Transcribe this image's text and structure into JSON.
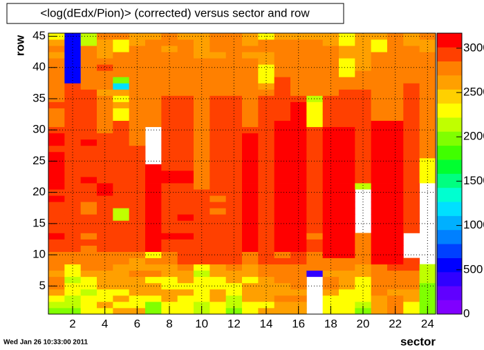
{
  "chart_data": {
    "type": "heatmap",
    "title": "<log(dEdx/Pion)> (corrected) versus sector and row",
    "xlabel": "sector",
    "ylabel": "row",
    "date": "Wed Jan 26 10:33:00 2011",
    "xlim": [
      0.5,
      24.5
    ],
    "xticks": [
      2,
      4,
      6,
      8,
      10,
      12,
      14,
      16,
      18,
      20,
      22,
      24
    ],
    "ylim": [
      0.5,
      45.5
    ],
    "yticks": [
      5,
      10,
      15,
      20,
      25,
      30,
      35,
      40,
      45
    ],
    "zlim": [
      0,
      3170
    ],
    "zticks": [
      0,
      500,
      1000,
      1500,
      2000,
      2500,
      3000
    ],
    "grid": true,
    "palette": [
      "#8000ff",
      "#6000ff",
      "#3000ff",
      "#0000ff",
      "#0040ff",
      "#0080ff",
      "#00b0ff",
      "#00e0ff",
      "#00ffd0",
      "#00ff80",
      "#00ff30",
      "#40ff00",
      "#80ff00",
      "#c0ff00",
      "#ffff00",
      "#ffd000",
      "#ffa000",
      "#ff8000",
      "#ff4000",
      "#ff0000"
    ],
    "x": [
      1,
      2,
      3,
      4,
      5,
      6,
      7,
      8,
      9,
      10,
      11,
      12,
      13,
      14,
      15,
      16,
      17,
      18,
      19,
      20,
      21,
      22,
      23,
      24
    ],
    "y": [
      1,
      2,
      3,
      4,
      5,
      6,
      7,
      8,
      9,
      10,
      11,
      12,
      13,
      14,
      15,
      16,
      17,
      18,
      19,
      20,
      21,
      22,
      23,
      24,
      25,
      26,
      27,
      28,
      29,
      30,
      31,
      32,
      33,
      34,
      35,
      36,
      37,
      38,
      39,
      40,
      41,
      42,
      43,
      44,
      45
    ],
    "z": [
      [
        2050,
        2200,
        2350,
        2550,
        2700,
        2700,
        2550,
        2700,
        2700,
        2700,
        2900,
        2900,
        3050,
        2900,
        2900,
        2900,
        2900,
        2900,
        3050,
        2900,
        3050,
        3050,
        3050,
        3050,
        3050,
        3050,
        2900,
        3050,
        3050,
        2900,
        2700,
        2700,
        2700,
        2900,
        2700,
        2700,
        2700,
        2700,
        2700,
        2700,
        2700,
        2550,
        2700,
        2550,
        2350
      ],
      [
        2050,
        2200,
        2200,
        2350,
        2350,
        2200,
        2350,
        2350,
        2700,
        2700,
        2900,
        2900,
        2900,
        2900,
        2900,
        2900,
        2900,
        2900,
        2900,
        2900,
        2900,
        2900,
        2900,
        2900,
        2900,
        2900,
        2900,
        2900,
        2900,
        2900,
        2900,
        2900,
        2900,
        2900,
        2900,
        2900,
        2900,
        600,
        600,
        600,
        600,
        600,
        600,
        600,
        600
      ],
      [
        2350,
        2350,
        2350,
        2200,
        2350,
        2350,
        2550,
        2700,
        2700,
        2700,
        2700,
        2900,
        2700,
        2900,
        2900,
        2900,
        2700,
        2700,
        2900,
        2900,
        2900,
        3050,
        2900,
        2900,
        2900,
        2900,
        2900,
        3050,
        2900,
        2900,
        2900,
        2900,
        2900,
        2900,
        2900,
        2900,
        2700,
        2700,
        2700,
        2700,
        2700,
        2700,
        2700,
        2200,
        2200
      ],
      [
        2350,
        2550,
        2350,
        2350,
        2550,
        2550,
        2550,
        2700,
        2700,
        2700,
        2900,
        2900,
        2900,
        2900,
        2900,
        2900,
        2900,
        2900,
        2900,
        3050,
        3050,
        2900,
        2900,
        2900,
        2900,
        2900,
        2900,
        2900,
        2900,
        2700,
        2700,
        2700,
        2700,
        2700,
        2700,
        2550,
        2700,
        2700,
        2700,
        2900,
        2700,
        2550,
        2550,
        2550,
        2700
      ],
      [
        2550,
        2350,
        2550,
        2350,
        2550,
        2550,
        2550,
        2550,
        2700,
        2700,
        2900,
        2900,
        2900,
        2900,
        2900,
        2200,
        2200,
        2900,
        2900,
        2900,
        2900,
        2900,
        2900,
        2900,
        2900,
        2900,
        2900,
        2900,
        2900,
        2900,
        2900,
        2350,
        2350,
        2550,
        2350,
        2550,
        1200,
        2050,
        2700,
        2700,
        2700,
        2700,
        2350,
        2350,
        2700
      ],
      [
        2550,
        2350,
        2350,
        2550,
        2550,
        2550,
        2700,
        2550,
        2550,
        2700,
        2900,
        2900,
        2900,
        2900,
        2900,
        2900,
        2900,
        2900,
        2900,
        2900,
        2900,
        2900,
        2900,
        2900,
        2900,
        2900,
        2900,
        2700,
        2700,
        2700,
        2700,
        2700,
        2700,
        2700,
        2700,
        2700,
        2700,
        2700,
        2700,
        2700,
        2700,
        2700,
        2700,
        2550,
        2550
      ],
      [
        2050,
        2050,
        2350,
        2550,
        2550,
        2350,
        2700,
        2550,
        2700,
        2350,
        3050,
        3050,
        3050,
        3050,
        3050,
        3050,
        3050,
        3050,
        3050,
        3050,
        3050,
        3050,
        3050,
        3050,
        null,
        null,
        null,
        null,
        null,
        null,
        2700,
        2700,
        2700,
        2700,
        2700,
        2700,
        2700,
        2700,
        2700,
        2700,
        2700,
        2700,
        2700,
        2700,
        2550
      ],
      [
        2350,
        2350,
        2550,
        2550,
        2350,
        2350,
        2550,
        2550,
        2700,
        2700,
        2900,
        2900,
        3050,
        2900,
        2900,
        2900,
        2900,
        2900,
        2900,
        2900,
        2900,
        3050,
        3050,
        2900,
        2900,
        2900,
        2900,
        2900,
        2900,
        2900,
        2900,
        2900,
        2900,
        2900,
        2900,
        2700,
        2700,
        2700,
        2700,
        2700,
        2700,
        2700,
        2550,
        2700,
        2700
      ],
      [
        2350,
        2350,
        2350,
        2550,
        2350,
        2550,
        2550,
        2700,
        2900,
        2900,
        2900,
        2900,
        3050,
        2900,
        2900,
        3050,
        2900,
        2900,
        2900,
        2900,
        2900,
        3050,
        3050,
        2900,
        2900,
        2900,
        2900,
        2900,
        2900,
        2900,
        2900,
        2900,
        2900,
        2900,
        2900,
        2700,
        2700,
        2700,
        2700,
        2700,
        2700,
        2700,
        2700,
        2700,
        2550
      ],
      [
        2200,
        2200,
        2350,
        2350,
        2350,
        2350,
        2200,
        2350,
        2900,
        2900,
        2900,
        2900,
        2900,
        2900,
        2900,
        2900,
        2900,
        2900,
        2900,
        2900,
        2700,
        2700,
        2700,
        2700,
        2700,
        2700,
        2700,
        2700,
        2700,
        2700,
        2700,
        2700,
        2700,
        2700,
        2700,
        2700,
        2700,
        2700,
        2700,
        2700,
        2700,
        2550,
        2550,
        2550,
        2550
      ],
      [
        2350,
        2350,
        2550,
        2550,
        2350,
        2350,
        2550,
        2550,
        2900,
        2900,
        2900,
        2900,
        2900,
        2900,
        2900,
        2900,
        2700,
        2900,
        2700,
        2900,
        2900,
        2900,
        2900,
        2900,
        2900,
        2900,
        2900,
        2900,
        2900,
        2900,
        2900,
        2900,
        2900,
        2900,
        2900,
        2700,
        2700,
        2700,
        2700,
        2700,
        2700,
        2550,
        2700,
        2700,
        2700
      ],
      [
        2050,
        2200,
        2200,
        2350,
        2350,
        2550,
        2550,
        2700,
        2900,
        2900,
        2900,
        2900,
        2900,
        2900,
        2900,
        2900,
        2900,
        2900,
        2900,
        2900,
        2900,
        2900,
        2900,
        2900,
        2900,
        2900,
        2900,
        2900,
        2900,
        2900,
        2900,
        2900,
        2900,
        2900,
        2900,
        2700,
        2700,
        2700,
        2700,
        2700,
        2700,
        2700,
        2700,
        2700,
        2700
      ],
      [
        2350,
        2350,
        2550,
        2550,
        2550,
        2350,
        2550,
        2550,
        2700,
        2700,
        3050,
        3050,
        3050,
        3050,
        3050,
        3050,
        3050,
        3050,
        3050,
        3050,
        3050,
        3050,
        3050,
        3050,
        3050,
        3050,
        3050,
        3050,
        3050,
        2900,
        2700,
        2700,
        2700,
        2700,
        2700,
        2700,
        2700,
        2700,
        2700,
        2700,
        2700,
        2550,
        2700,
        2550,
        2550
      ],
      [
        2550,
        2350,
        2550,
        2550,
        2550,
        2550,
        2700,
        2700,
        2900,
        2900,
        2900,
        2900,
        2900,
        2900,
        2900,
        2900,
        2900,
        2900,
        2900,
        2900,
        2900,
        2900,
        2900,
        2900,
        2900,
        2900,
        2900,
        2900,
        2900,
        2900,
        2900,
        2900,
        2900,
        2900,
        2900,
        2700,
        2550,
        2350,
        2350,
        2350,
        2550,
        2550,
        2700,
        2700,
        2350
      ],
      [
        2550,
        2550,
        2700,
        2550,
        2550,
        2700,
        2700,
        2700,
        2900,
        2700,
        3050,
        3050,
        3050,
        3050,
        3050,
        3050,
        3050,
        3050,
        3050,
        3050,
        3050,
        3050,
        3050,
        3050,
        3050,
        3050,
        3050,
        3050,
        3050,
        3050,
        3050,
        2900,
        2900,
        2900,
        2900,
        2900,
        2900,
        2900,
        2700,
        2700,
        2700,
        2700,
        2700,
        2700,
        2550
      ],
      [
        2550,
        2550,
        2700,
        2550,
        2700,
        2700,
        2700,
        2700,
        2900,
        2900,
        3050,
        3050,
        3050,
        3050,
        3050,
        3050,
        3050,
        3050,
        3050,
        3050,
        3050,
        3050,
        3050,
        3050,
        3050,
        3050,
        3050,
        3050,
        3050,
        3050,
        3050,
        3050,
        3050,
        3050,
        2900,
        2700,
        2700,
        2700,
        2700,
        2700,
        2700,
        2700,
        2700,
        2700,
        2550
      ],
      [
        null,
        null,
        null,
        null,
        null,
        null,
        350,
        2700,
        2700,
        2700,
        2900,
        2900,
        2700,
        2900,
        2900,
        2900,
        2900,
        2900,
        2900,
        2900,
        2900,
        2900,
        2900,
        2900,
        2900,
        2900,
        2900,
        2900,
        2900,
        2900,
        2350,
        2350,
        2350,
        2350,
        2200,
        2700,
        2700,
        2700,
        2700,
        2700,
        2700,
        2700,
        2700,
        2700,
        2550
      ],
      [
        2350,
        2350,
        2350,
        2550,
        2700,
        2700,
        2550,
        2700,
        2700,
        3050,
        3050,
        3050,
        3050,
        3050,
        3050,
        3050,
        3050,
        3050,
        3050,
        3050,
        3050,
        3050,
        3050,
        3050,
        3050,
        3050,
        3050,
        3050,
        3050,
        3050,
        2900,
        2900,
        2900,
        2900,
        2900,
        2700,
        2700,
        2700,
        2700,
        2700,
        2700,
        2700,
        2700,
        2550,
        2550
      ],
      [
        2350,
        2350,
        2350,
        2350,
        2550,
        2550,
        2550,
        2700,
        2700,
        3050,
        3050,
        3050,
        3050,
        3050,
        3050,
        3050,
        3050,
        3050,
        3050,
        3050,
        3050,
        3050,
        3050,
        3050,
        3050,
        3050,
        3050,
        3050,
        3050,
        3050,
        2900,
        2900,
        2900,
        2900,
        2900,
        2900,
        2700,
        2700,
        2350,
        2350,
        2350,
        2550,
        2550,
        2350,
        2350
      ],
      [
        2050,
        2200,
        2350,
        2350,
        2350,
        2350,
        2550,
        2550,
        2700,
        2700,
        2700,
        2700,
        2700,
        null,
        null,
        null,
        null,
        null,
        null,
        null,
        2200,
        2900,
        2900,
        2900,
        2900,
        2900,
        2900,
        2900,
        2900,
        2900,
        2900,
        2900,
        2900,
        2900,
        2900,
        2900,
        2700,
        2700,
        2700,
        2550,
        2550,
        2550,
        2550,
        2550,
        2550
      ],
      [
        2550,
        2550,
        2550,
        2700,
        2700,
        2700,
        2700,
        2700,
        3050,
        3050,
        3050,
        3050,
        3050,
        3050,
        3050,
        3050,
        3050,
        3050,
        3050,
        3050,
        3050,
        3050,
        3050,
        3050,
        3050,
        3050,
        3050,
        3050,
        3050,
        3050,
        3050,
        2700,
        2700,
        2700,
        2700,
        2700,
        2700,
        2700,
        2700,
        2700,
        2700,
        2700,
        2350,
        2350,
        2550
      ],
      [
        2700,
        2700,
        2700,
        2550,
        2700,
        2700,
        2700,
        2900,
        3050,
        3050,
        3050,
        3050,
        3050,
        3050,
        3050,
        3050,
        3050,
        3050,
        3050,
        3050,
        3050,
        3050,
        3050,
        3050,
        3050,
        3050,
        3050,
        3050,
        3050,
        3050,
        3050,
        2700,
        2700,
        2700,
        2700,
        2700,
        2700,
        2700,
        2700,
        2700,
        2700,
        2700,
        2700,
        2700,
        2700
      ],
      [
        2350,
        2350,
        2550,
        2550,
        2700,
        2700,
        2700,
        2900,
        2900,
        null,
        null,
        null,
        null,
        2900,
        2900,
        2900,
        2900,
        2900,
        2900,
        2900,
        2900,
        2900,
        2900,
        2900,
        2900,
        2900,
        2900,
        2900,
        2900,
        2900,
        2900,
        2900,
        2900,
        2900,
        2900,
        2900,
        2900,
        2700,
        2700,
        2700,
        2700,
        2700,
        2700,
        2550,
        2550
      ],
      [
        2050,
        2050,
        2050,
        2050,
        2050,
        2200,
        2200,
        2200,
        null,
        null,
        null,
        null,
        null,
        null,
        null,
        null,
        null,
        null,
        null,
        null,
        null,
        2350,
        2350,
        2350,
        2350,
        2700,
        2700,
        2700,
        2700,
        2700,
        2700,
        2700,
        2700,
        2700,
        2700,
        2700,
        2700,
        2700,
        2700,
        2700,
        2700,
        2700,
        2550,
        2550,
        2700
      ]
    ]
  }
}
